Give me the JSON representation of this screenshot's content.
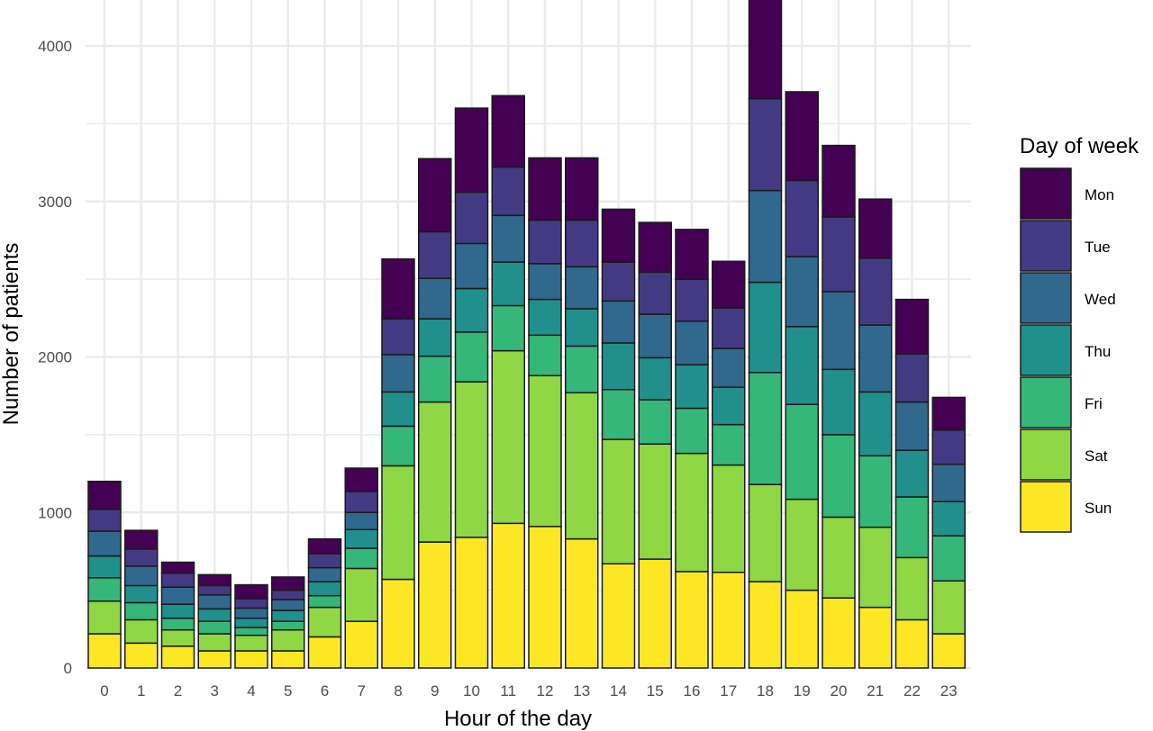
{
  "chart_data": {
    "type": "bar",
    "stacked": true,
    "xlabel": "Hour of the day",
    "ylabel": "Number of patients",
    "ylim": [
      0,
      4300
    ],
    "yticks": [
      0,
      1000,
      2000,
      3000,
      4000
    ],
    "grid": true,
    "legend_title": "Day of week",
    "legend_position": "right",
    "categories": [
      "0",
      "1",
      "2",
      "3",
      "4",
      "5",
      "6",
      "7",
      "8",
      "9",
      "10",
      "11",
      "12",
      "13",
      "14",
      "15",
      "16",
      "17",
      "18",
      "19",
      "20",
      "21",
      "22",
      "23"
    ],
    "series": [
      {
        "name": "Sun",
        "color": "#fde725",
        "values": [
          220,
          160,
          140,
          110,
          110,
          110,
          200,
          300,
          570,
          810,
          840,
          930,
          910,
          830,
          670,
          700,
          620,
          615,
          555,
          500,
          450,
          390,
          310,
          220
        ]
      },
      {
        "name": "Sat",
        "color": "#8fd744",
        "values": [
          210,
          150,
          105,
          110,
          100,
          135,
          190,
          340,
          730,
          900,
          1000,
          1110,
          970,
          940,
          800,
          740,
          760,
          690,
          625,
          585,
          520,
          515,
          400,
          340
        ]
      },
      {
        "name": "Fri",
        "color": "#35b779",
        "values": [
          150,
          110,
          75,
          80,
          50,
          55,
          75,
          130,
          255,
          295,
          320,
          290,
          260,
          300,
          320,
          285,
          290,
          260,
          720,
          610,
          530,
          460,
          390,
          290
        ]
      },
      {
        "name": "Thu",
        "color": "#21908c",
        "values": [
          140,
          110,
          90,
          80,
          60,
          70,
          90,
          120,
          220,
          240,
          280,
          280,
          230,
          240,
          300,
          270,
          280,
          240,
          580,
          500,
          420,
          410,
          300,
          220
        ]
      },
      {
        "name": "Wed",
        "color": "#31688e",
        "values": [
          160,
          125,
          110,
          90,
          65,
          70,
          90,
          110,
          240,
          260,
          290,
          300,
          230,
          270,
          270,
          280,
          280,
          250,
          590,
          450,
          500,
          430,
          310,
          240
        ]
      },
      {
        "name": "Tue",
        "color": "#443a83",
        "values": [
          140,
          110,
          90,
          60,
          60,
          60,
          90,
          135,
          230,
          300,
          330,
          310,
          280,
          300,
          250,
          270,
          270,
          260,
          590,
          490,
          480,
          430,
          310,
          220
        ]
      },
      {
        "name": "Mon",
        "color": "#440154",
        "values": [
          180,
          120,
          70,
          70,
          90,
          85,
          95,
          150,
          385,
          470,
          540,
          460,
          400,
          400,
          340,
          320,
          320,
          300,
          650,
          570,
          460,
          380,
          350,
          210
        ]
      }
    ]
  }
}
